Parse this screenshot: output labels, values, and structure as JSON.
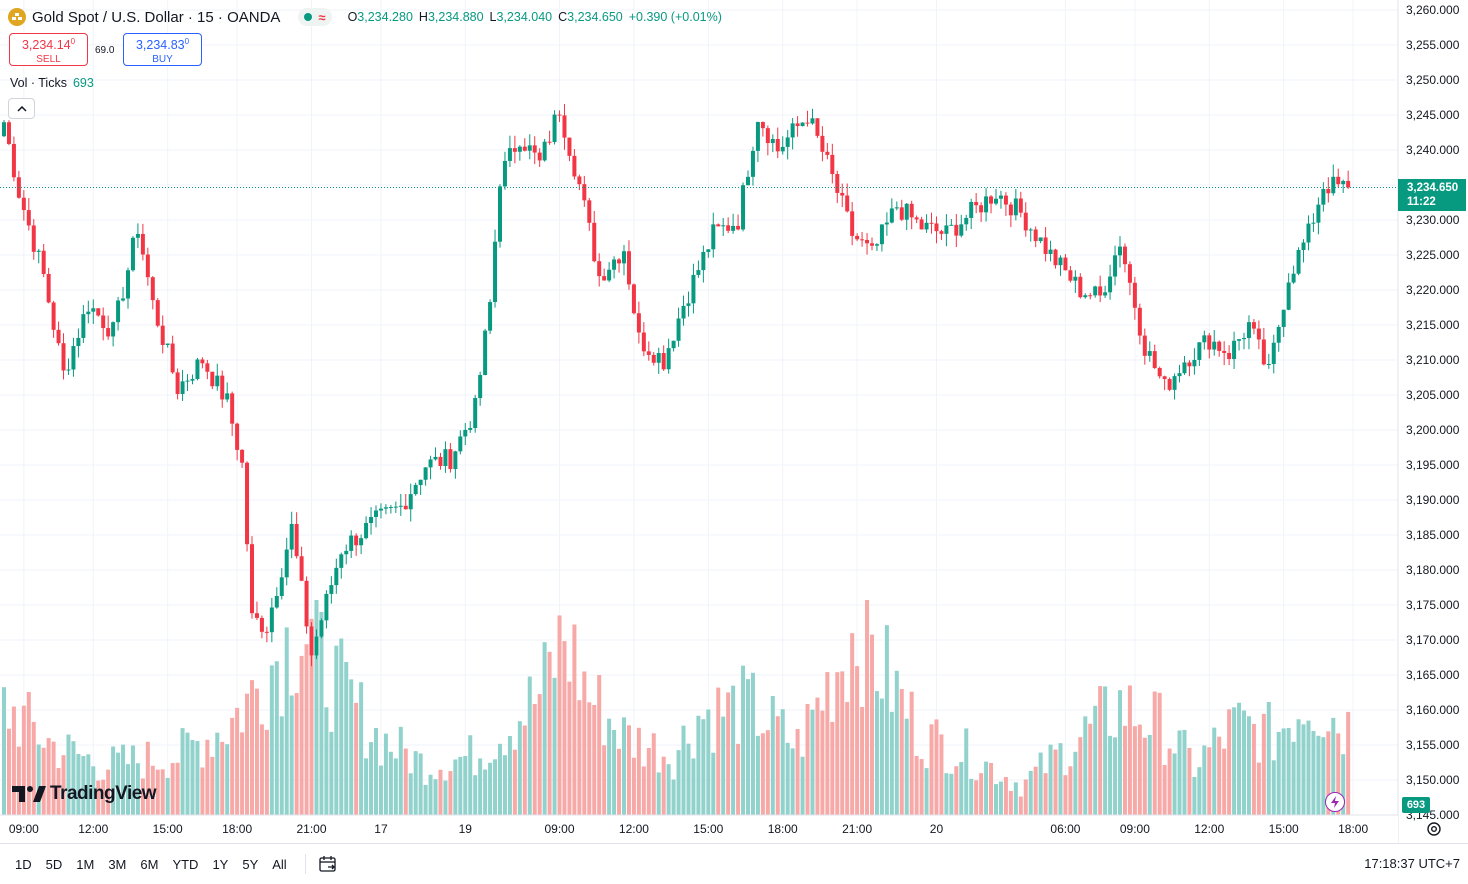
{
  "header": {
    "title": "Gold Spot / U.S. Dollar · 15 · OANDA",
    "ohlc": [
      {
        "k": "O",
        "v": "3,234.280"
      },
      {
        "k": "H",
        "v": "3,234.880"
      },
      {
        "k": "L",
        "v": "3,234.040"
      },
      {
        "k": "C",
        "v": "3,234.650"
      }
    ],
    "change": "+0.390 (+0.01%)",
    "approx_symbol": "≈"
  },
  "trade": {
    "sell_price": "3,234.14",
    "sell_price_sup": "0",
    "sell_label": "SELL",
    "spread": "69.0",
    "buy_price": "3,234.83",
    "buy_price_sup": "0",
    "buy_label": "BUY"
  },
  "volume_legend": {
    "label": "Vol · Ticks",
    "value": "693"
  },
  "branding": {
    "logo_text": "TradingView"
  },
  "price_badge": {
    "price": "3,234.650",
    "countdown": "11:22"
  },
  "volume_badge": "693",
  "bottom_bar": {
    "ranges": [
      "1D",
      "5D",
      "1M",
      "3M",
      "6M",
      "YTD",
      "1Y",
      "5Y",
      "All"
    ],
    "clock": "17:18:37 UTC+7"
  },
  "colors": {
    "up": "#089981",
    "down": "#f23645",
    "up_volume": "#92d2cc",
    "down_volume": "#f7a9a7",
    "grid": "#f0f3fa"
  },
  "chart_data": {
    "type": "candlestick",
    "y_axis": {
      "min": 3145,
      "max": 3260,
      "ticks": [
        "3,260.000",
        "3,255.000",
        "3,250.000",
        "3,245.000",
        "3,240.000",
        "3,235.000",
        "3,230.000",
        "3,225.000",
        "3,220.000",
        "3,215.000",
        "3,210.000",
        "3,205.000",
        "3,200.000",
        "3,195.000",
        "3,190.000",
        "3,185.000",
        "3,180.000",
        "3,175.000",
        "3,170.000",
        "3,165.000",
        "3,160.000",
        "3,155.000",
        "3,150.000",
        "3,145.000"
      ]
    },
    "x_axis": {
      "ticks": [
        "09:00",
        "12:00",
        "15:00",
        "18:00",
        "21:00",
        "17",
        "19",
        "09:00",
        "12:00",
        "15:00",
        "18:00",
        "21:00",
        "20",
        "06:00",
        "09:00",
        "12:00",
        "15:00",
        "18:00"
      ]
    },
    "current_price": 3234.65,
    "keypoints": [
      [
        0,
        3244
      ],
      [
        3,
        3234
      ],
      [
        8,
        3222
      ],
      [
        12,
        3208
      ],
      [
        17,
        3218
      ],
      [
        22,
        3214
      ],
      [
        27,
        3229
      ],
      [
        30,
        3218
      ],
      [
        35,
        3206
      ],
      [
        40,
        3210
      ],
      [
        45,
        3204
      ],
      [
        48,
        3195
      ],
      [
        50,
        3173
      ],
      [
        53,
        3172
      ],
      [
        58,
        3186
      ],
      [
        62,
        3168
      ],
      [
        68,
        3183
      ],
      [
        75,
        3187
      ],
      [
        80,
        3189
      ],
      [
        85,
        3195
      ],
      [
        90,
        3196
      ],
      [
        95,
        3203
      ],
      [
        98,
        3218
      ],
      [
        100,
        3236
      ],
      [
        104,
        3242
      ],
      [
        108,
        3238
      ],
      [
        112,
        3246
      ],
      [
        116,
        3235
      ],
      [
        120,
        3222
      ],
      [
        125,
        3226
      ],
      [
        128,
        3213
      ],
      [
        133,
        3210
      ],
      [
        137,
        3218
      ],
      [
        143,
        3228
      ],
      [
        148,
        3230
      ],
      [
        152,
        3245
      ],
      [
        156,
        3240
      ],
      [
        162,
        3245
      ],
      [
        166,
        3238
      ],
      [
        171,
        3228
      ],
      [
        175,
        3225
      ],
      [
        180,
        3232
      ],
      [
        185,
        3229
      ],
      [
        190,
        3228
      ],
      [
        195,
        3231
      ],
      [
        200,
        3234
      ],
      [
        205,
        3231
      ],
      [
        211,
        3225
      ],
      [
        217,
        3220
      ],
      [
        221,
        3219
      ],
      [
        225,
        3227
      ],
      [
        230,
        3212
      ],
      [
        234,
        3206
      ],
      [
        238,
        3210
      ],
      [
        243,
        3213
      ],
      [
        247,
        3211
      ],
      [
        251,
        3215
      ],
      [
        255,
        3208
      ],
      [
        259,
        3222
      ],
      [
        263,
        3228
      ],
      [
        266,
        3235
      ],
      [
        270,
        3234.65
      ]
    ],
    "volume_keypoints": [
      [
        0,
        55
      ],
      [
        10,
        35
      ],
      [
        20,
        25
      ],
      [
        35,
        30
      ],
      [
        45,
        45
      ],
      [
        50,
        60
      ],
      [
        55,
        80
      ],
      [
        60,
        95
      ],
      [
        66,
        70
      ],
      [
        75,
        40
      ],
      [
        85,
        25
      ],
      [
        95,
        30
      ],
      [
        108,
        60
      ],
      [
        113,
        90
      ],
      [
        118,
        60
      ],
      [
        125,
        40
      ],
      [
        135,
        30
      ],
      [
        140,
        50
      ],
      [
        150,
        55
      ],
      [
        160,
        35
      ],
      [
        165,
        60
      ],
      [
        172,
        95
      ],
      [
        178,
        70
      ],
      [
        185,
        40
      ],
      [
        195,
        30
      ],
      [
        205,
        15
      ],
      [
        215,
        35
      ],
      [
        225,
        55
      ],
      [
        233,
        45
      ],
      [
        240,
        25
      ],
      [
        248,
        45
      ],
      [
        256,
        40
      ],
      [
        263,
        60
      ],
      [
        270,
        45
      ]
    ],
    "volume_max": 100
  }
}
